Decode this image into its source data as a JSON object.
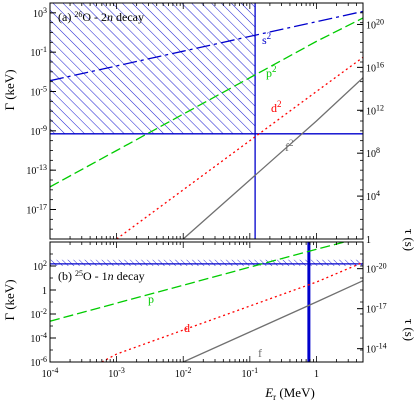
{
  "chart_data": [
    {
      "type": "line",
      "panel": "(a)",
      "title_prefix": "(a) ",
      "title_sup": "26",
      "title_nucleus": "O - 2",
      "title_n": "n",
      "title_suffix": " decay",
      "xscale": "log",
      "yscale": "log",
      "xlim": [
        0.0001,
        5
      ],
      "ylim": [
        1e-20,
        10000
      ],
      "y2lim": [
        1,
        1e+22
      ],
      "ylabel_sym": "Γ",
      "ylabel_unit": "(keV)",
      "y2label_sym": "τ",
      "y2label_unit": "(s)",
      "yticks": [
        "10^3",
        "10^-1",
        "10^-5",
        "10^-9",
        "10^-13",
        "10^-17"
      ],
      "ytick_vals": [
        1000,
        0.1,
        1e-05,
        1e-09,
        1e-13,
        1e-17
      ],
      "y2ticks": [
        "10^20",
        "10^16",
        "10^12",
        "10^8",
        "10^4",
        "1"
      ],
      "y2tick_vals": [
        1e+20,
        1e+16,
        1000000000000.0,
        100000000.0,
        10000,
        1
      ],
      "series": [
        {
          "name": "s²",
          "label_text": "s",
          "label_sup": "2",
          "color": "#0000cc",
          "dash": "14 4 3 4",
          "x": [
            0.0001,
            0.001,
            0.01,
            0.1,
            1,
            5
          ],
          "y": [
            0.000125,
            0.004,
            0.126,
            4,
            126,
            1400
          ]
        },
        {
          "name": "p²",
          "label_text": "p",
          "label_sup": "2",
          "color": "#00cc00",
          "dash": "10 4",
          "x": [
            0.0001,
            0.001,
            0.01,
            0.1,
            1,
            5
          ],
          "y": [
            2e-15,
            1e-11,
            5e-08,
            0.00025,
            1.25,
            300
          ]
        },
        {
          "name": "d²",
          "label_text": "d",
          "label_sup": "2",
          "color": "#ff0000",
          "dash": "2 3",
          "x": [
            0.001,
            0.01,
            0.1,
            1,
            5
          ],
          "y": [
            1e-20,
            1e-15,
            1e-10,
            1e-05,
            0.03
          ]
        },
        {
          "name": "f²",
          "label_text": "f",
          "label_sup": "2",
          "color": "#707070",
          "dash": "",
          "x": [
            0.01,
            0.1,
            1,
            5
          ],
          "y": [
            1e-20,
            1e-14,
            1e-08,
            0.00025
          ]
        }
      ],
      "limits": {
        "hline": 5e-10,
        "vline": 0.12,
        "hatched_region": "E < 0.12 MeV and Γ > 5e-10 keV",
        "color": "#0000cc"
      }
    },
    {
      "type": "line",
      "panel": "(b)",
      "title_prefix": "(b) ",
      "title_sup": "25",
      "title_nucleus": "O - 1",
      "title_n": "n",
      "title_suffix": " decay",
      "xscale": "log",
      "yscale": "log",
      "xlim": [
        0.0001,
        5
      ],
      "ylim": [
        1e-06,
        10000
      ],
      "y2lim": [
        1e-13,
        1e-22
      ],
      "xlabel_sym": "E",
      "xlabel_sub": "r",
      "xlabel_unit": " (MeV)",
      "ylabel_sym": "Γ",
      "ylabel_unit": "(keV)",
      "y2label_sym": "τ",
      "y2label_unit": "(s)",
      "xticks": [
        "10^-4",
        "10^-3",
        "10^-2",
        "10^-1",
        "1"
      ],
      "xtick_vals": [
        0.0001,
        0.001,
        0.01,
        0.1,
        1
      ],
      "yticks": [
        "10^2",
        "1",
        "10^-2",
        "10^-4",
        "10^-6"
      ],
      "ytick_vals": [
        100,
        1,
        0.01,
        0.0001,
        1e-06
      ],
      "y2ticks": [
        "10^-20",
        "10^-17",
        "10^-14"
      ],
      "y2tick_vals": [
        1e-20,
        1e-17,
        1e-14
      ],
      "series": [
        {
          "name": "p",
          "label_text": "p",
          "label_sup": "",
          "color": "#00cc00",
          "dash": "10 4",
          "x": [
            0.0001,
            0.001,
            0.01,
            0.1,
            1,
            5
          ],
          "y": [
            0.0025,
            0.08,
            2.5,
            80,
            2500,
            25000
          ]
        },
        {
          "name": "d",
          "label_text": "d",
          "label_sup": "",
          "color": "#ff0000",
          "dash": "2 3",
          "x": [
            0.0006,
            0.001,
            0.01,
            0.1,
            1,
            5
          ],
          "y": [
            1e-06,
            4.6e-06,
            0.00046,
            0.046,
            4.6,
            200
          ]
        },
        {
          "name": "f",
          "label_text": "f",
          "label_sup": "",
          "color": "#707070",
          "dash": "",
          "x": [
            0.01,
            0.1,
            1,
            5
          ],
          "y": [
            1e-06,
            0.000316,
            0.1,
            6
          ]
        }
      ],
      "limits": {
        "hline": 150,
        "band_low": 100,
        "band_high": 330,
        "vline": 0.77,
        "hatched_region": "Γ between 100 and 330 keV",
        "color": "#0000cc"
      }
    }
  ]
}
